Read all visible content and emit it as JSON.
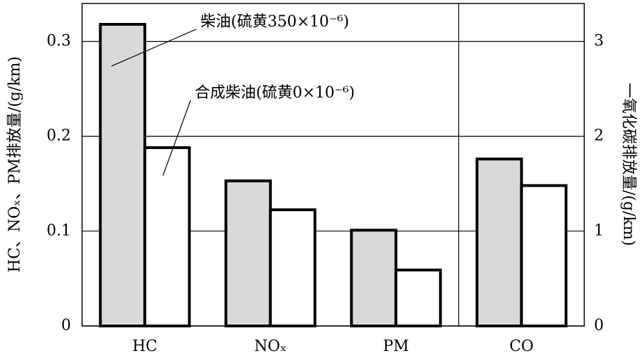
{
  "chart_data": {
    "type": "bar",
    "y_label": "HC、NOₓ、PM排放量/(g/km)",
    "y2_label": "一氧化碳排放量/(g/km)",
    "categories": [
      "HC",
      "NOₓ",
      "PM",
      "CO"
    ],
    "series": [
      {
        "name": "柴油(硫黄350×10⁻⁶)",
        "color": "#d9d9d9",
        "values": [
          0.318,
          0.153,
          0.101,
          null
        ],
        "y2_values": [
          null,
          null,
          null,
          1.76
        ]
      },
      {
        "name": "合成柴油(硫黄0×10⁻⁶)",
        "color": "#ffffff",
        "values": [
          0.188,
          0.1225,
          0.059,
          null
        ],
        "y2_values": [
          null,
          null,
          null,
          1.48
        ]
      }
    ],
    "ylim": [
      0,
      0.34
    ],
    "yticks": [
      0,
      0.1,
      0.2,
      0.3
    ],
    "y2lim": [
      0,
      3.4
    ],
    "y2ticks": [
      0,
      1,
      2,
      3
    ],
    "grid": true
  }
}
